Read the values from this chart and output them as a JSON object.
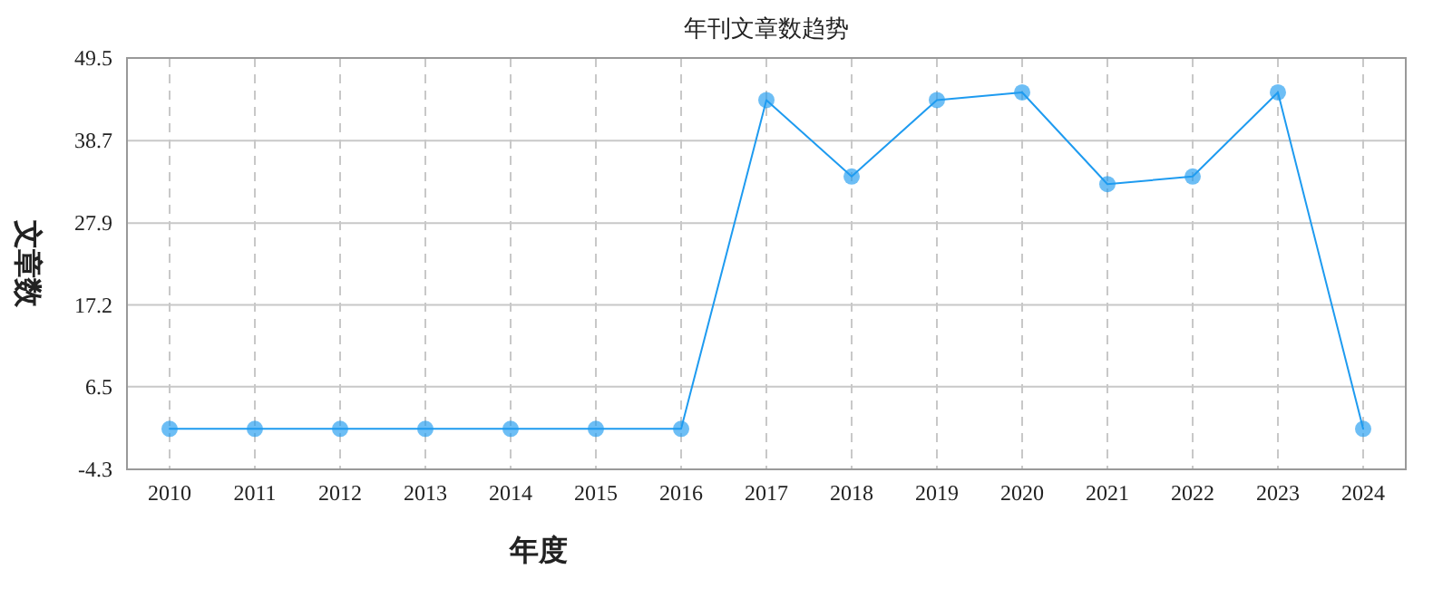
{
  "chart_data": {
    "type": "line",
    "title": "年刊文章数趋势",
    "xlabel": "年度",
    "ylabel": "文章数",
    "categories": [
      "2010",
      "2011",
      "2012",
      "2013",
      "2014",
      "2015",
      "2016",
      "2017",
      "2018",
      "2019",
      "2020",
      "2021",
      "2022",
      "2023",
      "2024"
    ],
    "series": [
      {
        "color": "#1e9bf0",
        "values": [
          1,
          1,
          1,
          1,
          1,
          1,
          1,
          44,
          34,
          44,
          45,
          33,
          34,
          45,
          1
        ]
      }
    ],
    "ylim": [
      -4.3,
      49.5
    ],
    "yticks": [
      -4.3,
      6.5,
      17.2,
      27.9,
      38.7,
      49.5
    ],
    "grid": true,
    "marker": "circle"
  }
}
